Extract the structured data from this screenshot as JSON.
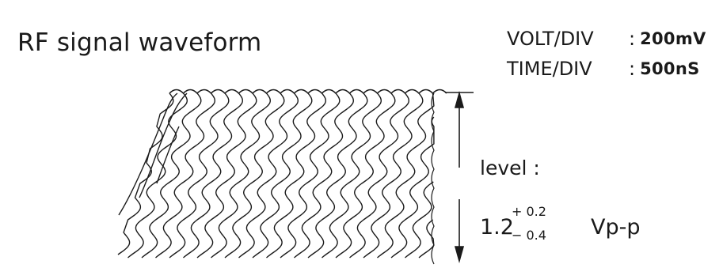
{
  "title": "RF signal waveform",
  "settings": [
    {
      "label": "VOLT/DIV",
      "value": "200mV"
    },
    {
      "label": "TIME/DIV",
      "value": "500nS"
    }
  ],
  "level": {
    "label": "level :",
    "nominal": "1.2",
    "plus_tol": "+ 0.2",
    "minus_tol": "− 0.4",
    "unit": "Vp-p"
  },
  "colors": {
    "ink": "#1a1a1a",
    "background": "#ffffff"
  }
}
